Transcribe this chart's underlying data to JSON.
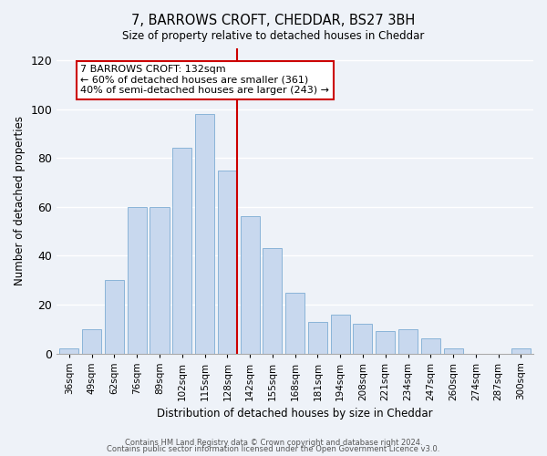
{
  "title": "7, BARROWS CROFT, CHEDDAR, BS27 3BH",
  "subtitle": "Size of property relative to detached houses in Cheddar",
  "xlabel": "Distribution of detached houses by size in Cheddar",
  "ylabel": "Number of detached properties",
  "bar_labels": [
    "36sqm",
    "49sqm",
    "62sqm",
    "76sqm",
    "89sqm",
    "102sqm",
    "115sqm",
    "128sqm",
    "142sqm",
    "155sqm",
    "168sqm",
    "181sqm",
    "194sqm",
    "208sqm",
    "221sqm",
    "234sqm",
    "247sqm",
    "260sqm",
    "274sqm",
    "287sqm",
    "300sqm"
  ],
  "bar_values": [
    2,
    10,
    30,
    60,
    60,
    84,
    98,
    75,
    56,
    43,
    25,
    13,
    16,
    12,
    9,
    10,
    6,
    2,
    0,
    0,
    2
  ],
  "bar_color": "#c8d8ee",
  "bar_edgecolor": "#8ab4d8",
  "vline_x_idx": 7,
  "vline_color": "#cc0000",
  "annotation_title": "7 BARROWS CROFT: 132sqm",
  "annotation_line1": "← 60% of detached houses are smaller (361)",
  "annotation_line2": "40% of semi-detached houses are larger (243) →",
  "annotation_box_color": "#ffffff",
  "annotation_box_edgecolor": "#cc0000",
  "ylim": [
    0,
    125
  ],
  "yticks": [
    0,
    20,
    40,
    60,
    80,
    100,
    120
  ],
  "footnote1": "Contains HM Land Registry data © Crown copyright and database right 2024.",
  "footnote2": "Contains public sector information licensed under the Open Government Licence v3.0.",
  "bg_color": "#eef2f8"
}
